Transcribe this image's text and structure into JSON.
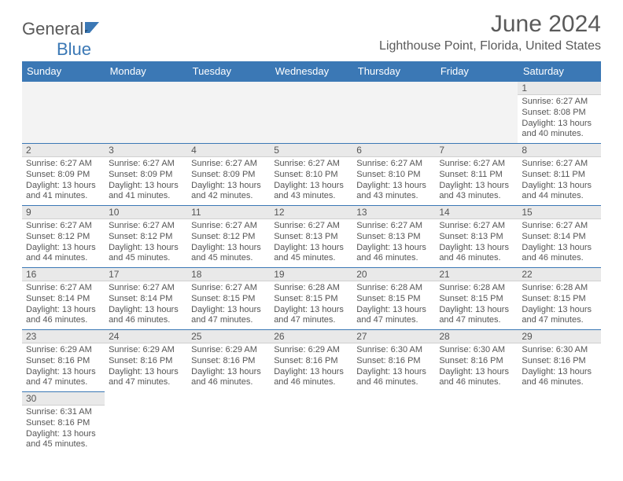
{
  "logo": {
    "text1": "General",
    "text2": "Blue"
  },
  "title": "June 2024",
  "subtitle": "Lighthouse Point, Florida, United States",
  "colors": {
    "header_bg": "#3b78b5",
    "header_text": "#ffffff",
    "daynum_bg": "#e9e9e9",
    "cell_border": "#3b78b5",
    "text": "#555555",
    "logo_gray": "#595959",
    "logo_blue": "#3b78b5"
  },
  "weekdays": [
    "Sunday",
    "Monday",
    "Tuesday",
    "Wednesday",
    "Thursday",
    "Friday",
    "Saturday"
  ],
  "cells": [
    [
      null,
      null,
      null,
      null,
      null,
      null,
      {
        "n": "1",
        "sr": "6:27 AM",
        "ss": "8:08 PM",
        "dl": "13 hours and 40 minutes."
      }
    ],
    [
      {
        "n": "2",
        "sr": "6:27 AM",
        "ss": "8:09 PM",
        "dl": "13 hours and 41 minutes."
      },
      {
        "n": "3",
        "sr": "6:27 AM",
        "ss": "8:09 PM",
        "dl": "13 hours and 41 minutes."
      },
      {
        "n": "4",
        "sr": "6:27 AM",
        "ss": "8:09 PM",
        "dl": "13 hours and 42 minutes."
      },
      {
        "n": "5",
        "sr": "6:27 AM",
        "ss": "8:10 PM",
        "dl": "13 hours and 43 minutes."
      },
      {
        "n": "6",
        "sr": "6:27 AM",
        "ss": "8:10 PM",
        "dl": "13 hours and 43 minutes."
      },
      {
        "n": "7",
        "sr": "6:27 AM",
        "ss": "8:11 PM",
        "dl": "13 hours and 43 minutes."
      },
      {
        "n": "8",
        "sr": "6:27 AM",
        "ss": "8:11 PM",
        "dl": "13 hours and 44 minutes."
      }
    ],
    [
      {
        "n": "9",
        "sr": "6:27 AM",
        "ss": "8:12 PM",
        "dl": "13 hours and 44 minutes."
      },
      {
        "n": "10",
        "sr": "6:27 AM",
        "ss": "8:12 PM",
        "dl": "13 hours and 45 minutes."
      },
      {
        "n": "11",
        "sr": "6:27 AM",
        "ss": "8:12 PM",
        "dl": "13 hours and 45 minutes."
      },
      {
        "n": "12",
        "sr": "6:27 AM",
        "ss": "8:13 PM",
        "dl": "13 hours and 45 minutes."
      },
      {
        "n": "13",
        "sr": "6:27 AM",
        "ss": "8:13 PM",
        "dl": "13 hours and 46 minutes."
      },
      {
        "n": "14",
        "sr": "6:27 AM",
        "ss": "8:13 PM",
        "dl": "13 hours and 46 minutes."
      },
      {
        "n": "15",
        "sr": "6:27 AM",
        "ss": "8:14 PM",
        "dl": "13 hours and 46 minutes."
      }
    ],
    [
      {
        "n": "16",
        "sr": "6:27 AM",
        "ss": "8:14 PM",
        "dl": "13 hours and 46 minutes."
      },
      {
        "n": "17",
        "sr": "6:27 AM",
        "ss": "8:14 PM",
        "dl": "13 hours and 46 minutes."
      },
      {
        "n": "18",
        "sr": "6:27 AM",
        "ss": "8:15 PM",
        "dl": "13 hours and 47 minutes."
      },
      {
        "n": "19",
        "sr": "6:28 AM",
        "ss": "8:15 PM",
        "dl": "13 hours and 47 minutes."
      },
      {
        "n": "20",
        "sr": "6:28 AM",
        "ss": "8:15 PM",
        "dl": "13 hours and 47 minutes."
      },
      {
        "n": "21",
        "sr": "6:28 AM",
        "ss": "8:15 PM",
        "dl": "13 hours and 47 minutes."
      },
      {
        "n": "22",
        "sr": "6:28 AM",
        "ss": "8:15 PM",
        "dl": "13 hours and 47 minutes."
      }
    ],
    [
      {
        "n": "23",
        "sr": "6:29 AM",
        "ss": "8:16 PM",
        "dl": "13 hours and 47 minutes."
      },
      {
        "n": "24",
        "sr": "6:29 AM",
        "ss": "8:16 PM",
        "dl": "13 hours and 47 minutes."
      },
      {
        "n": "25",
        "sr": "6:29 AM",
        "ss": "8:16 PM",
        "dl": "13 hours and 46 minutes."
      },
      {
        "n": "26",
        "sr": "6:29 AM",
        "ss": "8:16 PM",
        "dl": "13 hours and 46 minutes."
      },
      {
        "n": "27",
        "sr": "6:30 AM",
        "ss": "8:16 PM",
        "dl": "13 hours and 46 minutes."
      },
      {
        "n": "28",
        "sr": "6:30 AM",
        "ss": "8:16 PM",
        "dl": "13 hours and 46 minutes."
      },
      {
        "n": "29",
        "sr": "6:30 AM",
        "ss": "8:16 PM",
        "dl": "13 hours and 46 minutes."
      }
    ],
    [
      {
        "n": "30",
        "sr": "6:31 AM",
        "ss": "8:16 PM",
        "dl": "13 hours and 45 minutes."
      },
      null,
      null,
      null,
      null,
      null,
      null
    ]
  ]
}
